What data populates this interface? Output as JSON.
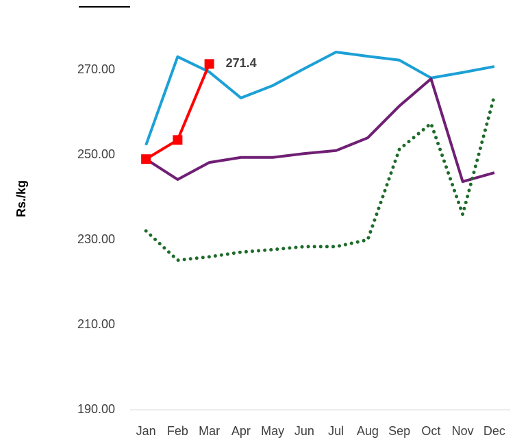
{
  "chart_data": {
    "type": "line",
    "y_label": "Rs./kg",
    "categories": [
      "Jan",
      "Feb",
      "Mar",
      "Apr",
      "May",
      "Jun",
      "Jul",
      "Aug",
      "Sep",
      "Oct",
      "Nov",
      "Dec"
    ],
    "ylim": [
      190,
      280
    ],
    "yticks": [
      {
        "value": 190,
        "label": "190.00"
      },
      {
        "value": 210,
        "label": "210.00"
      },
      {
        "value": 230,
        "label": "230.00"
      },
      {
        "value": 250,
        "label": "250.00"
      },
      {
        "value": 270,
        "label": "270.00"
      }
    ],
    "grid": false,
    "series": [
      {
        "color": "#1ca0d6",
        "values": [
          252.3,
          273.1,
          269.5,
          263.4,
          266.3,
          270.3,
          274.2,
          273.2,
          272.3,
          268.1,
          269.4,
          270.8
        ]
      },
      {
        "color": "#6f1f74",
        "values": [
          249.0,
          244.2,
          248.2,
          249.4,
          249.4,
          250.3,
          251.0,
          254.0,
          261.5,
          267.9,
          243.7,
          245.8
        ]
      },
      {
        "color": "#1e6b2a",
        "dash": "dotted",
        "values": [
          232.1,
          225.2,
          226.0,
          227.1,
          227.7,
          228.4,
          228.4,
          230.0,
          251.3,
          257.4,
          236.0,
          263.9
        ]
      },
      {
        "color": "#ff0000",
        "marker": "square",
        "data_label_index": 2,
        "values": [
          249.0,
          253.5,
          271.4,
          null,
          null,
          null,
          null,
          null,
          null,
          null,
          null,
          null
        ]
      }
    ]
  }
}
